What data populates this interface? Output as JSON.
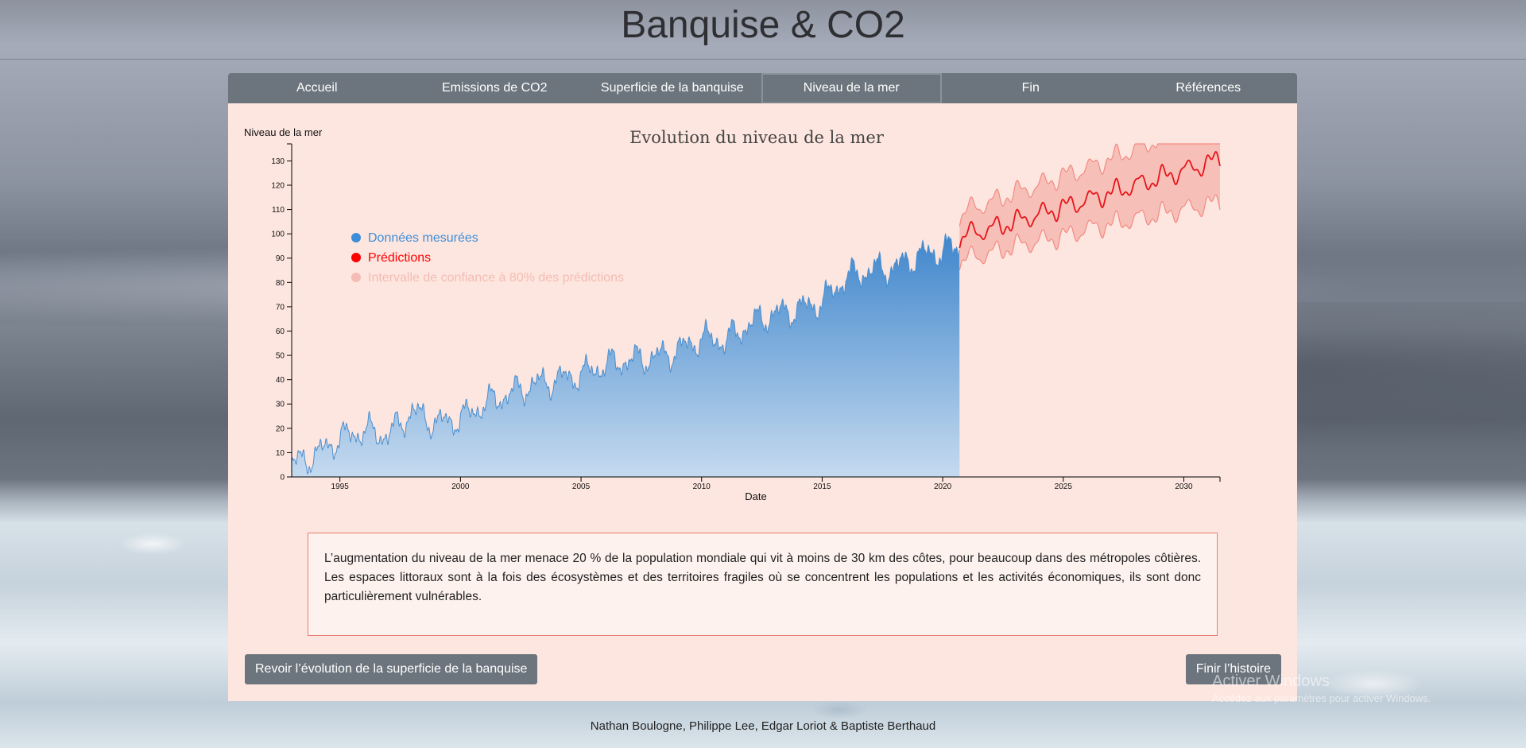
{
  "page": {
    "title": "Banquise & CO2"
  },
  "nav": {
    "items": [
      {
        "label": "Accueil",
        "active": false
      },
      {
        "label": "Emissions de CO2",
        "active": false
      },
      {
        "label": "Superficie de la banquise",
        "active": false
      },
      {
        "label": "Niveau de la mer",
        "active": true
      },
      {
        "label": "Fin",
        "active": false
      },
      {
        "label": "Références",
        "active": false
      }
    ]
  },
  "chart_data": {
    "type": "area",
    "title": "Evolution du niveau de la mer",
    "xlabel": "Date",
    "ylabel": "Niveau de la mer",
    "xlim": [
      1993,
      2031.5
    ],
    "ylim": [
      0,
      137
    ],
    "x_ticks": [
      1995,
      2000,
      2005,
      2010,
      2015,
      2020,
      2025,
      2030
    ],
    "y_ticks": [
      0,
      10,
      20,
      30,
      40,
      50,
      60,
      70,
      80,
      90,
      100,
      110,
      120,
      130
    ],
    "colors": {
      "measured": "#4a8fd0",
      "prediction": "#e8141a",
      "interval": "#f1a097"
    },
    "legend": [
      {
        "label": "Données mesurées",
        "color": "#3d8ed8"
      },
      {
        "label": "Prédictions",
        "color": "#ff0000"
      },
      {
        "label": "Intervalle de confiance à 80% des prédictions",
        "color": "#f4bcb4"
      }
    ],
    "series": [
      {
        "name": "Données mesurées",
        "x": [
          1993,
          1994,
          1995,
          1996,
          1997,
          1998,
          1999,
          2000,
          2001,
          2002,
          2003,
          2004,
          2005,
          2006,
          2007,
          2008,
          2009,
          2010,
          2011,
          2012,
          2013,
          2014,
          2015,
          2016,
          2017,
          2018,
          2019,
          2020,
          2020.7
        ],
        "values": [
          5,
          9,
          16,
          19,
          17,
          27,
          22,
          24,
          30,
          34,
          38,
          40,
          42,
          46,
          48,
          49,
          52,
          57,
          56,
          63,
          67,
          69,
          72,
          82,
          85,
          86,
          91,
          93,
          95
        ]
      },
      {
        "name": "Prédictions",
        "x": [
          2020.7,
          2021,
          2022,
          2023,
          2024,
          2025,
          2026,
          2027,
          2028,
          2029,
          2030,
          2031,
          2031.5
        ],
        "values": [
          97,
          100,
          102,
          105,
          108,
          111,
          114,
          117,
          120,
          123,
          126,
          129,
          131
        ],
        "lower": [
          88,
          90,
          92,
          95,
          97,
          99,
          102,
          104,
          106,
          108,
          110,
          112,
          113
        ],
        "upper": [
          106,
          110,
          113,
          117,
          120,
          124,
          127,
          131,
          135,
          139,
          143,
          147,
          150
        ]
      }
    ]
  },
  "info": {
    "text": "L’augmentation du niveau de la mer menace 20 % de la population mondiale qui vit à moins de 30 km des côtes, pour beaucoup dans des métropoles côtières. Les espaces littoraux sont à la fois des écosystèmes et des territoires fragiles où se concentrent les populations et les activités économiques, ils sont donc particulièrement vulnérables."
  },
  "buttons": {
    "prev_label": "Revoir l’évolution de la superficie de la banquise",
    "next_label": "Finir l’histoire"
  },
  "watermark": {
    "line1": "Activer Windows",
    "line2": "Accédez aux paramètres pour activer Windows."
  },
  "footer": {
    "authors": "Nathan Boulogne, Philippe Lee, Edgar Loriot & Baptiste Berthaud"
  }
}
